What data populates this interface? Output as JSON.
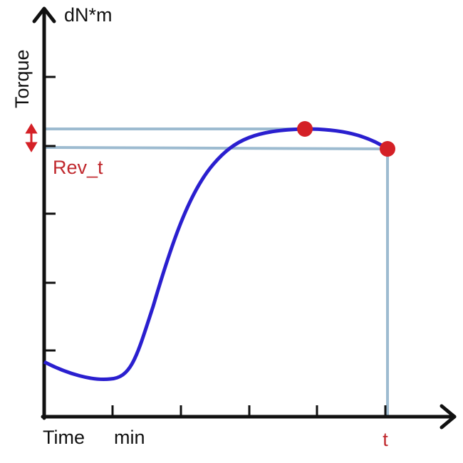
{
  "axis": {
    "y_title": "Torque",
    "y_unit": "dN*m",
    "x_title": "Time",
    "x_unit": "min"
  },
  "labels": {
    "reversion": "Rev_t",
    "time_mark": "t"
  }
}
